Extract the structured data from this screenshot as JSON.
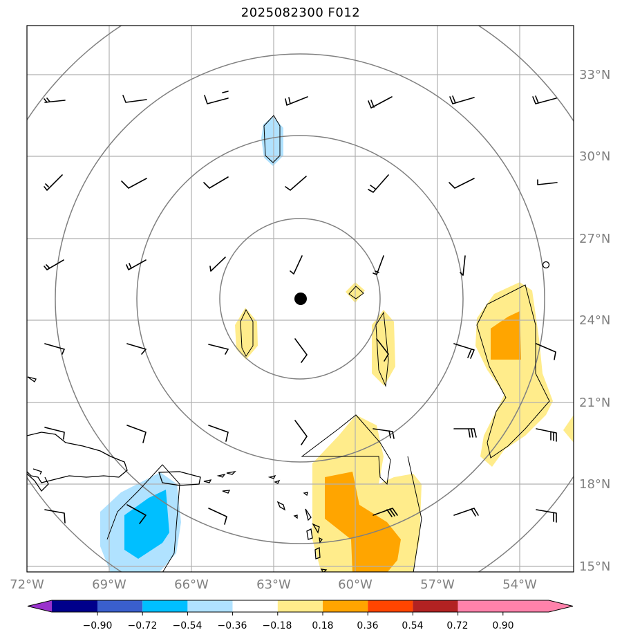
{
  "title": "2025082300 F012",
  "map": {
    "lon_range": [
      -72,
      -52.5
    ],
    "lat_range": [
      14.8,
      34.8
    ],
    "lat_labels": [
      "33°N",
      "30°N",
      "27°N",
      "24°N",
      "21°N",
      "18°N",
      "15°N"
    ],
    "lon_labels": [
      "72°W",
      "69°W",
      "66°W",
      "63°W",
      "60°W",
      "57°W",
      "54°W"
    ],
    "storm_center": {
      "lon": -62.0,
      "lat": 24.8
    },
    "range_rings": "concentric circles around storm center"
  },
  "colorbar": {
    "ticks": [
      "−0.90",
      "−0.72",
      "−0.54",
      "−0.36",
      "−0.18",
      "0.18",
      "0.36",
      "0.54",
      "0.72",
      "0.90"
    ],
    "colors": [
      "#9a32cd",
      "#00008b",
      "#3a5fcd",
      "#00bfff",
      "#b0e2ff",
      "#ffffff",
      "#ffec8b",
      "#ffa500",
      "#ff4500",
      "#b22222",
      "#ff82ab"
    ]
  },
  "chart_data": {
    "type": "heatmap",
    "title": "2025082300 F012",
    "xlabel": "",
    "ylabel": "",
    "xlim": [
      -72,
      -52.5
    ],
    "ylim": [
      14.8,
      34.8
    ],
    "levels": [
      -0.9,
      -0.72,
      -0.54,
      -0.36,
      -0.18,
      0.18,
      0.36,
      0.54,
      0.72,
      0.9
    ],
    "contour_regions": [
      {
        "level": -0.18,
        "note": "light blue, near 63W 30.5N"
      },
      {
        "level": -0.36,
        "note": "blue, near 67.5W 16.5N"
      },
      {
        "level": 0.18,
        "note": "light yellow, near 61W 24N and 59W 23N"
      },
      {
        "level": 0.36,
        "note": "orange, near 59.5W 16.5N and 54.5W 23.5N"
      }
    ]
  }
}
